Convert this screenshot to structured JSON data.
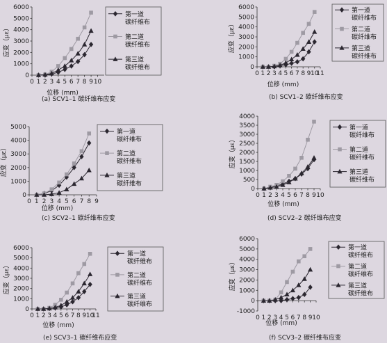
{
  "colors": {
    "background": "#ddd7e0",
    "series_1": "#2b2730",
    "series_2": "#9e9aa3",
    "series_3": "#2b2730"
  },
  "chart_data": [
    {
      "type": "line",
      "caption": "(a)  SCV1–1 碳纤维布应变",
      "xlabel": "位移 (mm)",
      "ylabel": "应变（με）",
      "xlim": [
        0,
        11
      ],
      "xticks": [
        0,
        1,
        2,
        3,
        4,
        5,
        6,
        7,
        8,
        9,
        10
      ],
      "ylim": [
        0,
        6000
      ],
      "yticks": [
        0,
        1000,
        2000,
        3000,
        4000,
        5000,
        6000
      ],
      "legend": "right",
      "series": [
        {
          "name": "第一道碳纤维布",
          "marker": "diamond",
          "x": [
            1,
            2,
            3,
            4,
            5,
            6,
            7,
            8,
            9
          ],
          "y": [
            0,
            0,
            100,
            250,
            500,
            800,
            1200,
            1800,
            2700
          ]
        },
        {
          "name": "第二道碳纤维布",
          "marker": "square",
          "x": [
            1,
            2,
            3,
            4,
            5,
            6,
            7,
            8,
            9
          ],
          "y": [
            0,
            50,
            300,
            800,
            1500,
            2300,
            3200,
            4200,
            5500
          ]
        },
        {
          "name": "第三道碳纤维布",
          "marker": "triangle",
          "x": [
            1,
            2,
            3,
            4,
            5,
            6,
            7,
            8,
            9
          ],
          "y": [
            0,
            50,
            150,
            450,
            800,
            1300,
            1900,
            2700,
            3900
          ]
        }
      ]
    },
    {
      "type": "line",
      "caption": "(b)  SCV1–2 碳纤维布应变",
      "xlabel": "位移 (mm)",
      "ylabel": "应变（με）",
      "xlim": [
        0,
        11
      ],
      "xticks": [
        0,
        1,
        2,
        3,
        4,
        5,
        6,
        7,
        8,
        9,
        10,
        11
      ],
      "ylim": [
        0,
        6000
      ],
      "yticks": [
        0,
        1000,
        2000,
        3000,
        4000,
        5000,
        6000
      ],
      "legend": "right",
      "series": [
        {
          "name": "第一道碳纤维布",
          "marker": "diamond",
          "x": [
            1,
            2,
            3,
            4,
            5,
            6,
            7,
            8,
            9,
            10
          ],
          "y": [
            0,
            0,
            0,
            100,
            200,
            350,
            500,
            800,
            1500,
            2500
          ]
        },
        {
          "name": "第二道碳纤维布",
          "marker": "square",
          "x": [
            1,
            2,
            3,
            4,
            5,
            6,
            7,
            8,
            9,
            10
          ],
          "y": [
            0,
            0,
            100,
            300,
            800,
            1500,
            2400,
            3400,
            4300,
            5500
          ]
        },
        {
          "name": "第三道碳纤维布",
          "marker": "triangle",
          "x": [
            1,
            2,
            3,
            4,
            5,
            6,
            7,
            8,
            9,
            10
          ],
          "y": [
            0,
            0,
            50,
            150,
            400,
            750,
            1200,
            1800,
            2500,
            3500
          ]
        }
      ]
    },
    {
      "type": "line",
      "caption": "(c)  SCV2–1 碳纤维布应变",
      "xlabel": "位移 (mm)",
      "ylabel": "应变（με）",
      "xlim": [
        0,
        9
      ],
      "xticks": [
        0,
        1,
        2,
        3,
        4,
        5,
        6,
        7,
        8,
        9
      ],
      "ylim": [
        0,
        5000
      ],
      "yticks": [
        0,
        1000,
        2000,
        3000,
        4000,
        5000
      ],
      "legend": "right",
      "series": [
        {
          "name": "第一道碳纤维布",
          "marker": "diamond",
          "x": [
            1,
            2,
            3,
            4,
            5,
            6,
            7,
            8
          ],
          "y": [
            0,
            100,
            300,
            700,
            1300,
            2000,
            2800,
            3800
          ]
        },
        {
          "name": "第二道碳纤维布",
          "marker": "square",
          "x": [
            1,
            2,
            3,
            4,
            5,
            6,
            7,
            8
          ],
          "y": [
            0,
            100,
            400,
            900,
            1500,
            2300,
            3200,
            4500
          ]
        },
        {
          "name": "第三道碳纤维布",
          "marker": "triangle",
          "x": [
            1,
            2,
            3,
            4,
            5,
            6,
            7,
            8
          ],
          "y": [
            0,
            0,
            50,
            150,
            400,
            800,
            1200,
            1800
          ]
        }
      ]
    },
    {
      "type": "line",
      "caption": "(d)  SCV2–2 碳纤维布应变",
      "xlabel": "位移 (mm)",
      "ylabel": "应变（με）",
      "xlim": [
        0,
        10
      ],
      "xticks": [
        0,
        1,
        2,
        3,
        4,
        5,
        6,
        7,
        8,
        9,
        10
      ],
      "ylim": [
        0,
        4000
      ],
      "yticks": [
        0,
        500,
        1000,
        1500,
        2000,
        2500,
        3000,
        3500,
        4000
      ],
      "legend": "right",
      "series": [
        {
          "name": "第一道碳纤维布",
          "marker": "diamond",
          "x": [
            1,
            2,
            3,
            4,
            5,
            6,
            7,
            8,
            9
          ],
          "y": [
            0,
            50,
            150,
            250,
            400,
            550,
            800,
            1100,
            1600
          ]
        },
        {
          "name": "第二道碳纤维布",
          "marker": "square",
          "x": [
            1,
            2,
            3,
            4,
            5,
            6,
            7,
            8,
            9
          ],
          "y": [
            0,
            100,
            200,
            400,
            700,
            1100,
            1700,
            2700,
            3700
          ]
        },
        {
          "name": "第三道碳纤维布",
          "marker": "triangle",
          "x": [
            1,
            2,
            3,
            4,
            5,
            6,
            7,
            8,
            9
          ],
          "y": [
            0,
            50,
            100,
            200,
            350,
            550,
            850,
            1200,
            1700
          ]
        }
      ]
    },
    {
      "type": "line",
      "caption": "(e)  SCV3–1 碳纤维布应变",
      "xlabel": "位移 (mm)",
      "ylabel": "应变（με）",
      "xlim": [
        0,
        11
      ],
      "xticks": [
        0,
        1,
        2,
        3,
        4,
        5,
        6,
        7,
        8,
        9,
        10,
        11
      ],
      "ylim": [
        0,
        6000
      ],
      "yticks": [
        0,
        1000,
        2000,
        3000,
        4000,
        5000,
        6000
      ],
      "legend": "right",
      "series": [
        {
          "name": "第一道碳纤维布",
          "marker": "diamond",
          "x": [
            1,
            2,
            3,
            4,
            5,
            6,
            7,
            8,
            9,
            10
          ],
          "y": [
            0,
            0,
            50,
            100,
            200,
            400,
            700,
            1100,
            1700,
            2400
          ]
        },
        {
          "name": "第二道碳纤维布",
          "marker": "square",
          "x": [
            1,
            2,
            3,
            4,
            5,
            6,
            7,
            8,
            9,
            10
          ],
          "y": [
            0,
            0,
            100,
            400,
            900,
            1600,
            2500,
            3500,
            4400,
            5400
          ]
        },
        {
          "name": "第三道碳纤维布",
          "marker": "triangle",
          "x": [
            1,
            2,
            3,
            4,
            5,
            6,
            7,
            8,
            9,
            10
          ],
          "y": [
            0,
            0,
            50,
            150,
            350,
            700,
            1100,
            1700,
            2500,
            3400
          ]
        }
      ]
    },
    {
      "type": "line",
      "caption": "(f)  SCV3–2 碳纤维布应变",
      "xlabel": "位移 (mm)",
      "ylabel": "应变（με）",
      "xlim": [
        0,
        10
      ],
      "xticks": [
        0,
        1,
        2,
        3,
        4,
        5,
        6,
        7,
        8,
        9,
        10
      ],
      "ylim": [
        -1000,
        6000
      ],
      "yticks": [
        -1000,
        0,
        1000,
        2000,
        3000,
        4000,
        5000,
        6000
      ],
      "legend": "right",
      "series": [
        {
          "name": "第一道碳纤维布",
          "marker": "diamond",
          "x": [
            1,
            2,
            3,
            4,
            5,
            6,
            7,
            8,
            9
          ],
          "y": [
            0,
            0,
            0,
            0,
            100,
            200,
            300,
            600,
            1300
          ]
        },
        {
          "name": "第二道碳纤维布",
          "marker": "square",
          "x": [
            1,
            2,
            3,
            4,
            5,
            6,
            7,
            8,
            9
          ],
          "y": [
            0,
            0,
            100,
            800,
            1800,
            2800,
            3800,
            4300,
            5000
          ]
        },
        {
          "name": "第三道碳纤维布",
          "marker": "triangle",
          "x": [
            1,
            2,
            3,
            4,
            5,
            6,
            7,
            8,
            9
          ],
          "y": [
            0,
            0,
            100,
            300,
            600,
            1000,
            1500,
            2100,
            3000
          ]
        }
      ]
    }
  ]
}
